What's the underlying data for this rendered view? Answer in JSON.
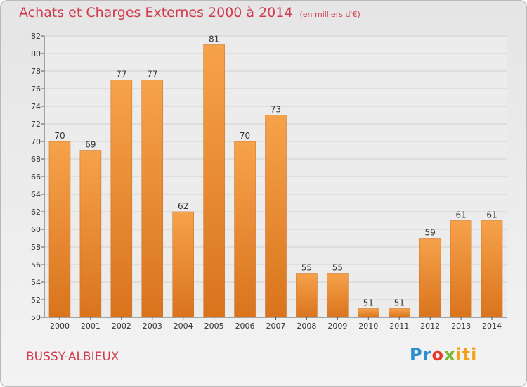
{
  "title": "Achats et Charges Externes 2000 à 2014",
  "subtitle": "(en milliers d'€)",
  "commune": "BUSSY-ALBIEUX",
  "logo": {
    "p1": "Pr",
    "p2": "o",
    "p3": "x",
    "p4": "iti"
  },
  "colors": {
    "bar_light": "#f6a24b",
    "bar_dark": "#d9741d",
    "title": "#d03a4d"
  },
  "chart_data": {
    "type": "bar",
    "categories": [
      "2000",
      "2001",
      "2002",
      "2003",
      "2004",
      "2005",
      "2006",
      "2007",
      "2008",
      "2009",
      "2010",
      "2011",
      "2012",
      "2013",
      "2014"
    ],
    "values": [
      70,
      69,
      77,
      77,
      62,
      81,
      70,
      73,
      55,
      55,
      51,
      51,
      59,
      61,
      61
    ],
    "ylim": [
      50,
      82
    ],
    "yticks": [
      50,
      52,
      54,
      56,
      58,
      60,
      62,
      64,
      66,
      68,
      70,
      72,
      74,
      76,
      78,
      80,
      82
    ],
    "grid": true,
    "legend": "none"
  }
}
